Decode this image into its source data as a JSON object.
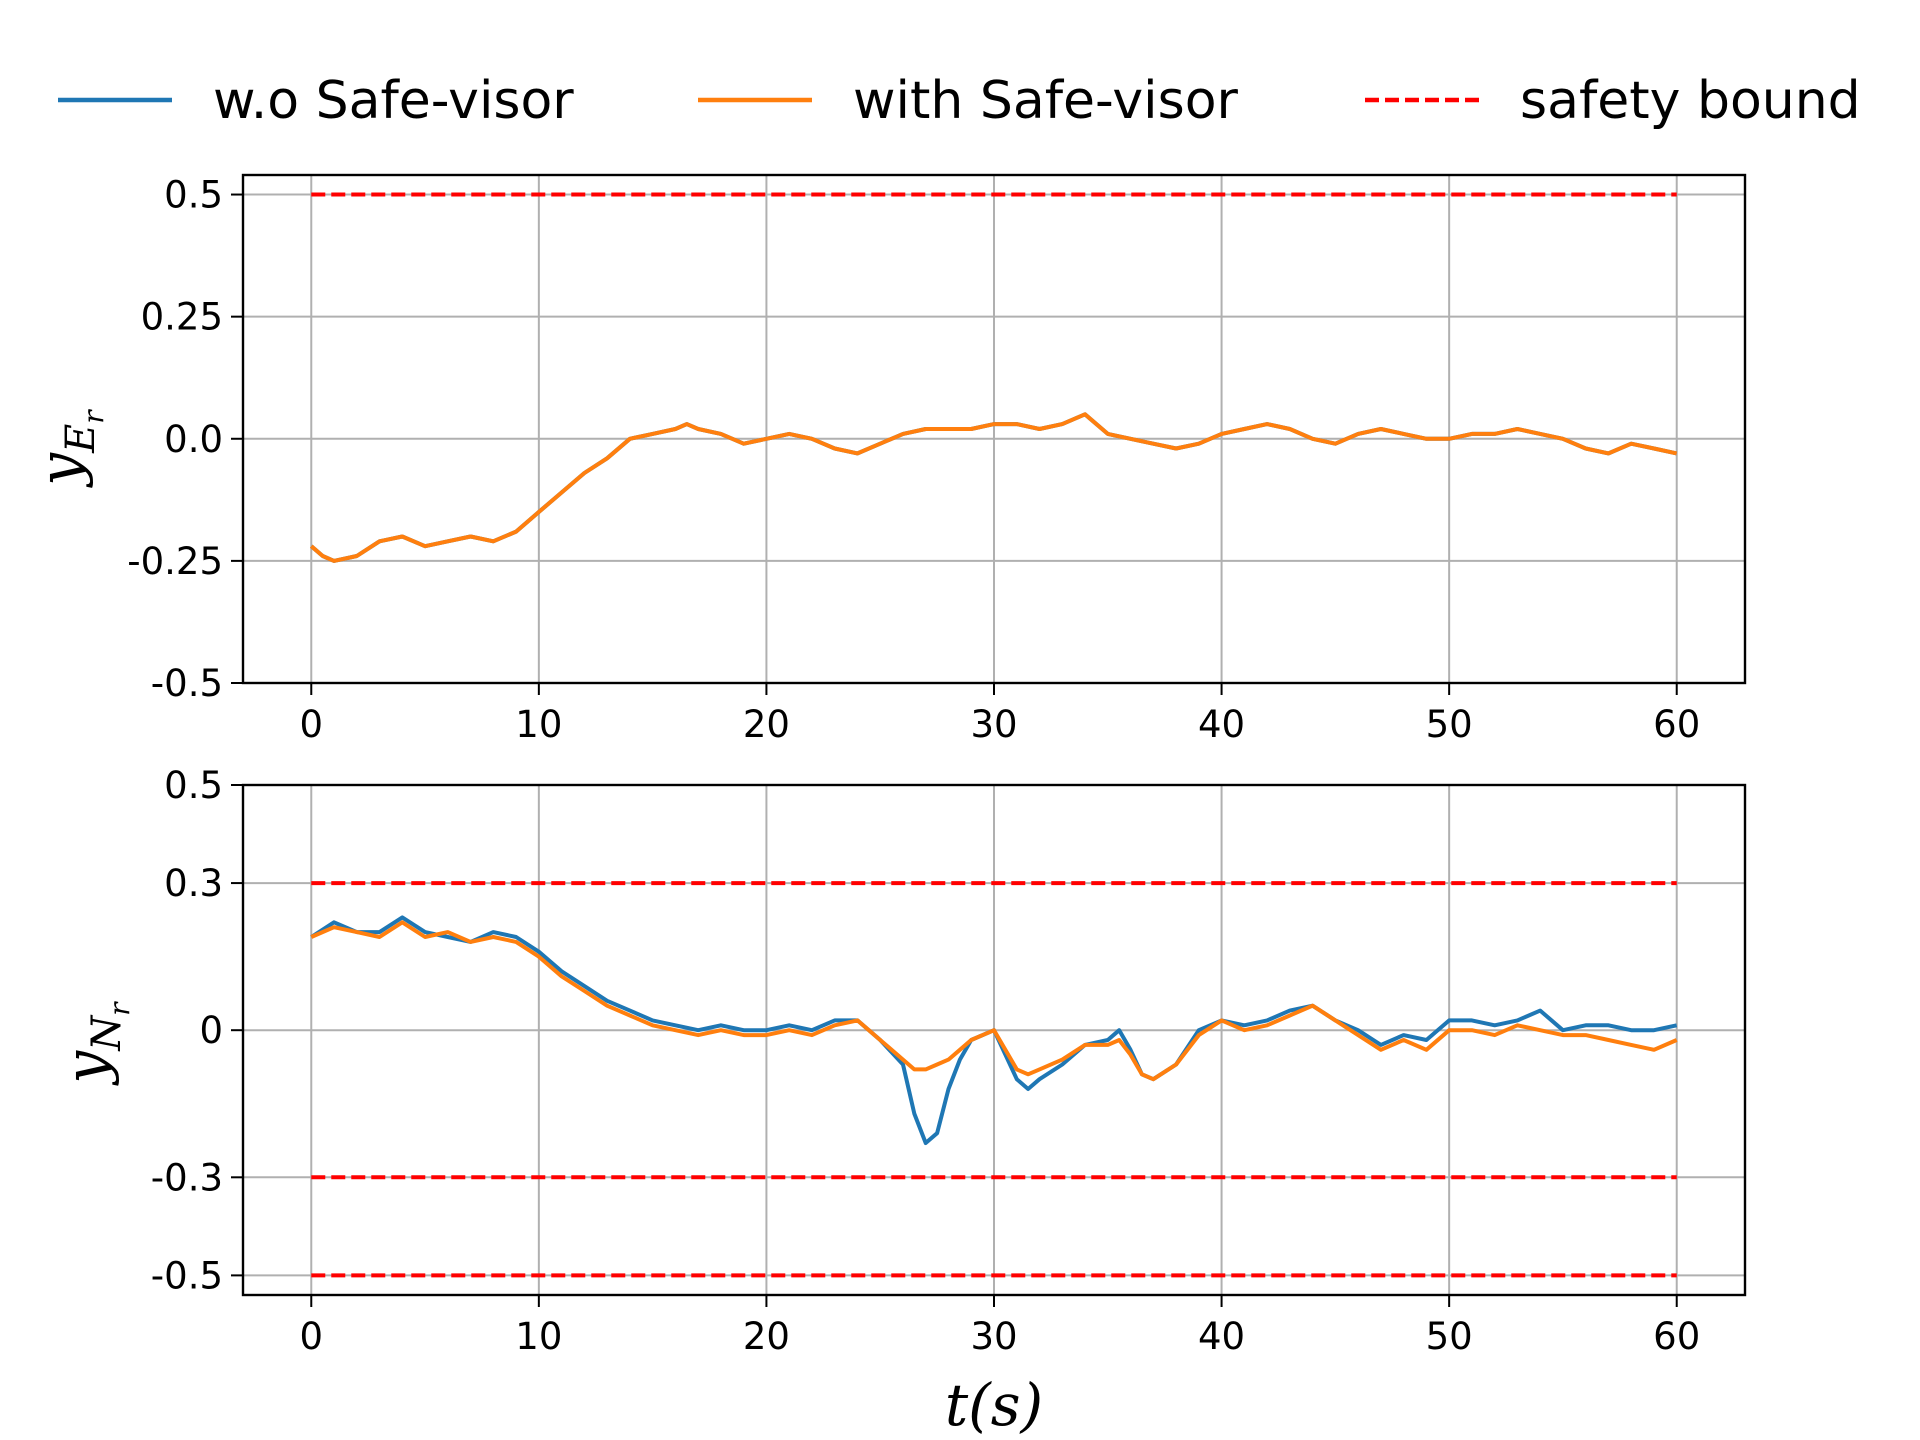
{
  "legend": [
    {
      "label": "w.o Safe-visor",
      "color": "#1f77b4",
      "dash": false
    },
    {
      "label": "with Safe-visor",
      "color": "#ff7f0e",
      "dash": false
    },
    {
      "label": "safety bound",
      "color": "#ff0000",
      "dash": true
    }
  ],
  "xlabel": "t(s)",
  "chart_data": [
    {
      "type": "line",
      "ylabel": "y",
      "ylabel_sub": "E",
      "ylabel_subsub": "r",
      "xlim": [
        -3,
        63
      ],
      "ylim": [
        -0.5,
        0.54
      ],
      "x_ticks": [
        0,
        10,
        20,
        30,
        40,
        50,
        60
      ],
      "x_tick_labels": [
        "0",
        "10",
        "20",
        "30",
        "40",
        "50",
        "60"
      ],
      "y_ticks": [
        0.5,
        0.25,
        0.0,
        -0.25,
        -0.5
      ],
      "y_tick_labels": [
        "0.5",
        "0.25",
        "0.0",
        "-0.25",
        "-0.5"
      ],
      "grid": true,
      "bounds": [
        0.5
      ],
      "series": [
        {
          "name": "w.o Safe-visor",
          "color": "#1f77b4",
          "x": [
            0,
            0.5,
            1,
            2,
            3,
            4,
            5,
            6,
            7,
            8,
            9,
            10,
            11,
            12,
            13,
            14,
            15,
            16,
            16.5,
            17,
            18,
            19,
            20,
            21,
            22,
            23,
            24,
            25,
            26,
            27,
            28,
            29,
            30,
            31,
            32,
            33,
            34,
            35,
            36,
            37,
            38,
            39,
            40,
            41,
            42,
            43,
            44,
            45,
            46,
            47,
            48,
            49,
            50,
            51,
            52,
            53,
            54,
            55,
            56,
            57,
            58,
            59,
            60
          ],
          "y": [
            -0.22,
            -0.24,
            -0.25,
            -0.24,
            -0.21,
            -0.2,
            -0.22,
            -0.21,
            -0.2,
            -0.21,
            -0.19,
            -0.15,
            -0.11,
            -0.07,
            -0.04,
            0.0,
            0.01,
            0.02,
            0.03,
            0.02,
            0.01,
            -0.01,
            0.0,
            0.01,
            0.0,
            -0.02,
            -0.03,
            -0.01,
            0.01,
            0.02,
            0.02,
            0.02,
            0.03,
            0.03,
            0.02,
            0.03,
            0.05,
            0.01,
            0.0,
            -0.01,
            -0.02,
            -0.01,
            0.01,
            0.02,
            0.03,
            0.02,
            0.0,
            -0.01,
            0.01,
            0.02,
            0.01,
            0.0,
            0.0,
            0.01,
            0.01,
            0.02,
            0.01,
            0.0,
            -0.02,
            -0.03,
            -0.01,
            -0.02,
            -0.03
          ]
        },
        {
          "name": "with Safe-visor",
          "color": "#ff7f0e",
          "x": [
            0,
            0.5,
            1,
            2,
            3,
            4,
            5,
            6,
            7,
            8,
            9,
            10,
            11,
            12,
            13,
            14,
            15,
            16,
            16.5,
            17,
            18,
            19,
            20,
            21,
            22,
            23,
            24,
            25,
            26,
            27,
            28,
            29,
            30,
            31,
            32,
            33,
            34,
            35,
            36,
            37,
            38,
            39,
            40,
            41,
            42,
            43,
            44,
            45,
            46,
            47,
            48,
            49,
            50,
            51,
            52,
            53,
            54,
            55,
            56,
            57,
            58,
            59,
            60
          ],
          "y": [
            -0.22,
            -0.24,
            -0.25,
            -0.24,
            -0.21,
            -0.2,
            -0.22,
            -0.21,
            -0.2,
            -0.21,
            -0.19,
            -0.15,
            -0.11,
            -0.07,
            -0.04,
            0.0,
            0.01,
            0.02,
            0.03,
            0.02,
            0.01,
            -0.01,
            0.0,
            0.01,
            0.0,
            -0.02,
            -0.03,
            -0.01,
            0.01,
            0.02,
            0.02,
            0.02,
            0.03,
            0.03,
            0.02,
            0.03,
            0.05,
            0.01,
            0.0,
            -0.01,
            -0.02,
            -0.01,
            0.01,
            0.02,
            0.03,
            0.02,
            0.0,
            -0.01,
            0.01,
            0.02,
            0.01,
            0.0,
            0.0,
            0.01,
            0.01,
            0.02,
            0.01,
            0.0,
            -0.02,
            -0.03,
            -0.01,
            -0.02,
            -0.03
          ]
        }
      ]
    },
    {
      "type": "line",
      "ylabel": "y",
      "ylabel_sub": "N",
      "ylabel_subsub": "r",
      "xlim": [
        -3,
        63
      ],
      "ylim": [
        -0.54,
        0.5
      ],
      "x_ticks": [
        0,
        10,
        20,
        30,
        40,
        50,
        60
      ],
      "x_tick_labels": [
        "0",
        "10",
        "20",
        "30",
        "40",
        "50",
        "60"
      ],
      "y_ticks": [
        0.5,
        0.3,
        0.0,
        -0.3,
        -0.5
      ],
      "y_tick_labels": [
        "0.5",
        "0.3",
        "0",
        "-0.3",
        "-0.5"
      ],
      "grid": true,
      "bounds": [
        0.3,
        -0.3,
        -0.5
      ],
      "series": [
        {
          "name": "w.o Safe-visor",
          "color": "#1f77b4",
          "x": [
            0,
            1,
            2,
            3,
            4,
            5,
            6,
            7,
            8,
            9,
            10,
            11,
            12,
            13,
            14,
            15,
            16,
            17,
            18,
            19,
            20,
            21,
            22,
            23,
            24,
            25,
            26,
            26.5,
            27,
            27.5,
            28,
            28.5,
            29,
            30,
            31,
            31.5,
            32,
            33,
            34,
            35,
            35.5,
            36,
            36.5,
            37,
            38,
            39,
            40,
            41,
            42,
            43,
            44,
            45,
            46,
            47,
            48,
            49,
            50,
            51,
            52,
            53,
            54,
            55,
            56,
            57,
            58,
            59,
            60
          ],
          "y": [
            0.19,
            0.22,
            0.2,
            0.2,
            0.23,
            0.2,
            0.19,
            0.18,
            0.2,
            0.19,
            0.16,
            0.12,
            0.09,
            0.06,
            0.04,
            0.02,
            0.01,
            0.0,
            0.01,
            0.0,
            0.0,
            0.01,
            0.0,
            0.02,
            0.02,
            -0.02,
            -0.07,
            -0.17,
            -0.23,
            -0.21,
            -0.12,
            -0.06,
            -0.02,
            0.0,
            -0.1,
            -0.12,
            -0.1,
            -0.07,
            -0.03,
            -0.02,
            0.0,
            -0.04,
            -0.09,
            -0.1,
            -0.07,
            0.0,
            0.02,
            0.01,
            0.02,
            0.04,
            0.05,
            0.02,
            0.0,
            -0.03,
            -0.01,
            -0.02,
            0.02,
            0.02,
            0.01,
            0.02,
            0.04,
            0.0,
            0.01,
            0.01,
            0.0,
            0.0,
            0.01
          ]
        },
        {
          "name": "with Safe-visor",
          "color": "#ff7f0e",
          "x": [
            0,
            1,
            2,
            3,
            4,
            5,
            6,
            7,
            8,
            9,
            10,
            11,
            12,
            13,
            14,
            15,
            16,
            17,
            18,
            19,
            20,
            21,
            22,
            23,
            24,
            25,
            26,
            26.5,
            27,
            27.5,
            28,
            28.5,
            29,
            30,
            31,
            31.5,
            32,
            33,
            34,
            35,
            35.5,
            36,
            36.5,
            37,
            38,
            39,
            40,
            41,
            42,
            43,
            44,
            45,
            46,
            47,
            48,
            49,
            50,
            51,
            52,
            53,
            54,
            55,
            56,
            57,
            58,
            59,
            60
          ],
          "y": [
            0.19,
            0.21,
            0.2,
            0.19,
            0.22,
            0.19,
            0.2,
            0.18,
            0.19,
            0.18,
            0.15,
            0.11,
            0.08,
            0.05,
            0.03,
            0.01,
            0.0,
            -0.01,
            0.0,
            -0.01,
            -0.01,
            0.0,
            -0.01,
            0.01,
            0.02,
            -0.02,
            -0.06,
            -0.08,
            -0.08,
            -0.07,
            -0.06,
            -0.04,
            -0.02,
            0.0,
            -0.08,
            -0.09,
            -0.08,
            -0.06,
            -0.03,
            -0.03,
            -0.02,
            -0.05,
            -0.09,
            -0.1,
            -0.07,
            -0.01,
            0.02,
            0.0,
            0.01,
            0.03,
            0.05,
            0.02,
            -0.01,
            -0.04,
            -0.02,
            -0.04,
            0.0,
            0.0,
            -0.01,
            0.01,
            0.0,
            -0.01,
            -0.01,
            -0.02,
            -0.03,
            -0.04,
            -0.02
          ]
        }
      ]
    }
  ]
}
